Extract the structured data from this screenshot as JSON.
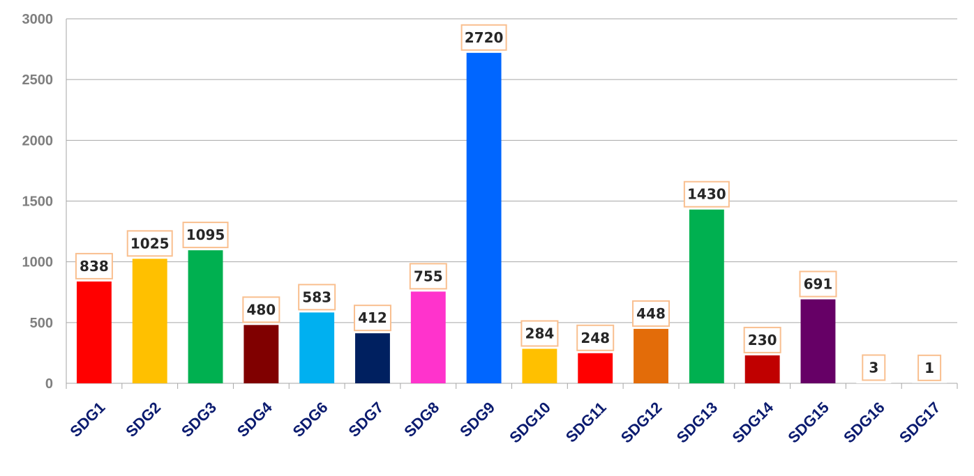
{
  "chart_data": {
    "type": "bar",
    "title": "",
    "xlabel": "",
    "ylabel": "",
    "categories": [
      "SDG1",
      "SDG2",
      "SDG3",
      "SDG4",
      "SDG6",
      "SDG7",
      "SDG8",
      "SDG9",
      "SDG10",
      "SDG11",
      "SDG12",
      "SDG13",
      "SDG14",
      "SDG15",
      "SDG16",
      "SDG17"
    ],
    "values": [
      838,
      1025,
      1095,
      480,
      583,
      412,
      755,
      2720,
      284,
      248,
      448,
      1430,
      230,
      691,
      3,
      1
    ],
    "colors": [
      "#ff0000",
      "#ffc000",
      "#00b050",
      "#800000",
      "#00b0f0",
      "#002060",
      "#ff33cc",
      "#0066ff",
      "#ffc000",
      "#ff0000",
      "#e36c09",
      "#00b050",
      "#c00000",
      "#660066",
      "#ffffff",
      "#ffffff"
    ],
    "ylim": [
      0,
      3000
    ],
    "yticks": [
      0,
      500,
      1000,
      1500,
      2000,
      2500,
      3000
    ],
    "grid": true,
    "legend": "none",
    "data_labels": true,
    "data_label_border_color": "#f9bf8f",
    "tick_label_color_x": "#0b1b6f",
    "tick_label_color_y": "#7f7f7f"
  }
}
